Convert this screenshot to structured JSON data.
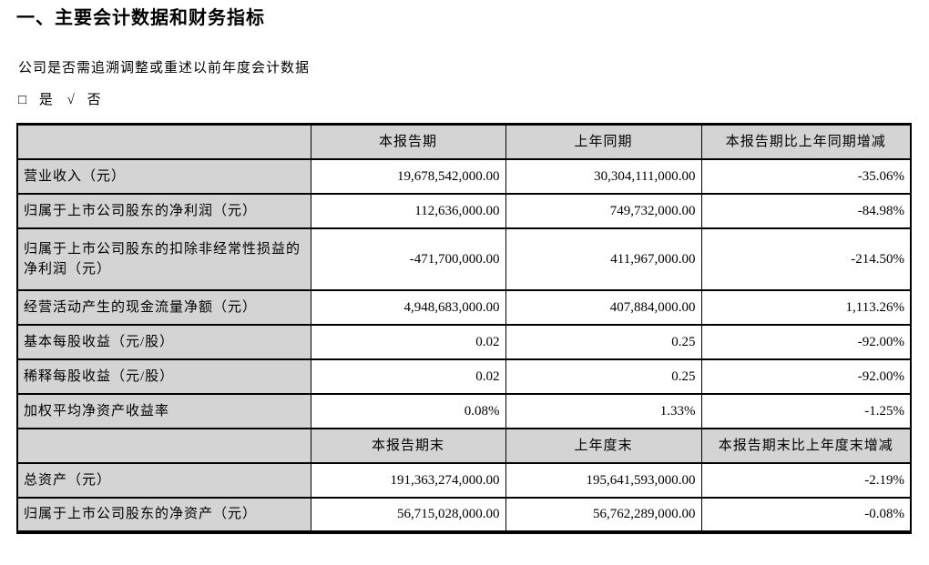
{
  "page": {
    "title": "一、主要会计数据和财务指标",
    "question": "公司是否需追溯调整或重述以前年度会计数据",
    "checkbox": {
      "box_glyph": "□",
      "yes_label": "是",
      "check_glyph": "√",
      "no_label": "否"
    }
  },
  "colors": {
    "header_bg": "#d4d4d4",
    "border": "#000000"
  },
  "table": {
    "header1": [
      "",
      "本报告期",
      "上年同期",
      "本报告期比上年同期增减"
    ],
    "rows1": [
      {
        "label": "营业收入（元）",
        "current": "19,678,542,000.00",
        "prior": "30,304,111,000.00",
        "change": "-35.06%"
      },
      {
        "label": "归属于上市公司股东的净利润（元）",
        "current": "112,636,000.00",
        "prior": "749,732,000.00",
        "change": "-84.98%"
      },
      {
        "label": "归属于上市公司股东的扣除非经常性损益的净利润（元）",
        "current": "-471,700,000.00",
        "prior": "411,967,000.00",
        "change": "-214.50%"
      },
      {
        "label": "经营活动产生的现金流量净额（元）",
        "current": "4,948,683,000.00",
        "prior": "407,884,000.00",
        "change": "1,113.26%"
      },
      {
        "label": "基本每股收益（元/股）",
        "current": "0.02",
        "prior": "0.25",
        "change": "-92.00%"
      },
      {
        "label": "稀释每股收益（元/股）",
        "current": "0.02",
        "prior": "0.25",
        "change": "-92.00%"
      },
      {
        "label": "加权平均净资产收益率",
        "current": "0.08%",
        "prior": "1.33%",
        "change": "-1.25%"
      }
    ],
    "header2": [
      "",
      "本报告期末",
      "上年度末",
      "本报告期末比上年度末增减"
    ],
    "rows2": [
      {
        "label": "总资产（元）",
        "current": "191,363,274,000.00",
        "prior": "195,641,593,000.00",
        "change": "-2.19%"
      },
      {
        "label": "归属于上市公司股东的净资产（元）",
        "current": "56,715,028,000.00",
        "prior": "56,762,289,000.00",
        "change": "-0.08%"
      }
    ]
  }
}
